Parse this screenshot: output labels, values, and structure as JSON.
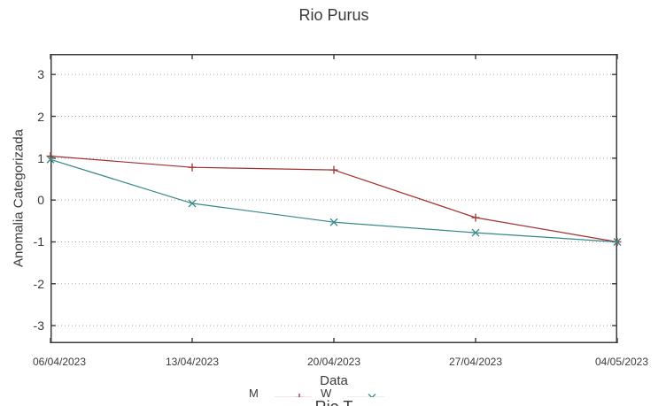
{
  "chart_data": {
    "type": "line",
    "title": "Rio Purus",
    "xlabel": "Data",
    "ylabel": "Anomalia Categorizada",
    "x_tick_labels": [
      "06/04/2023",
      "13/04/2023",
      "20/04/2023",
      "27/04/2023",
      "04/05/2023"
    ],
    "y_tick_values": [
      3,
      2,
      1,
      0,
      -1,
      -2,
      -3
    ],
    "ylim": [
      -3.42,
      3.49
    ],
    "grid": "horizontal dotted gridlines at integer y values",
    "legend_position": "below plot, clipped by bottom edge of screenshot",
    "series": [
      {
        "name_fragment": "M",
        "marker": "plus",
        "color": "#a03030",
        "values": [
          1.05,
          0.78,
          0.72,
          -0.42,
          -1.0
        ]
      },
      {
        "name_fragment": "W",
        "marker": "cross",
        "color": "#368787",
        "values": [
          0.97,
          -0.08,
          -0.53,
          -0.78,
          -1.0
        ]
      }
    ]
  },
  "colors": {
    "border": "#3c3c3c",
    "grid": "#a8a8a8",
    "text": "#3a3a3a"
  },
  "next_chart": {
    "title_fragment": "Rio T"
  }
}
